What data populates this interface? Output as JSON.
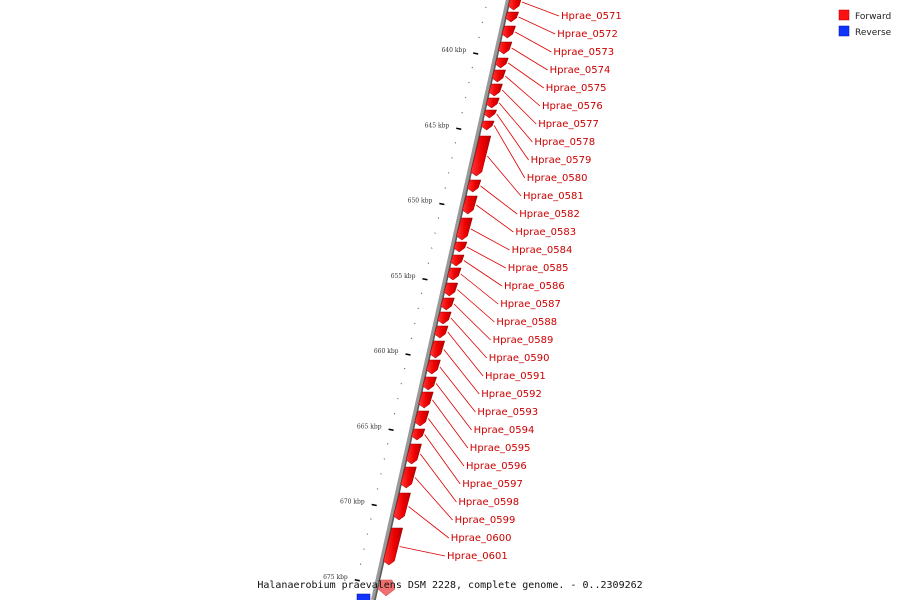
{
  "legend": {
    "items": [
      {
        "label": "Forward",
        "color": "#ff1111"
      },
      {
        "label": "Reverse",
        "color": "#1133ff"
      }
    ]
  },
  "caption": "Halanaerobium praevalens DSM 2228, complete genome. - 0..2309262",
  "axis": {
    "unit": "kbp",
    "ticks": [
      {
        "kbp": 640,
        "label": "640 kbp"
      },
      {
        "kbp": 645,
        "label": "645 kbp"
      },
      {
        "kbp": 650,
        "label": "650 kbp"
      },
      {
        "kbp": 655,
        "label": "655 kbp"
      },
      {
        "kbp": 660,
        "label": "660 kbp"
      },
      {
        "kbp": 665,
        "label": "665 kbp"
      },
      {
        "kbp": 670,
        "label": "670 kbp"
      },
      {
        "kbp": 675,
        "label": "675 kbp"
      }
    ]
  },
  "genes": [
    {
      "label": "Hprae_0571",
      "strand": "forward"
    },
    {
      "label": "Hprae_0572",
      "strand": "forward"
    },
    {
      "label": "Hprae_0573",
      "strand": "forward"
    },
    {
      "label": "Hprae_0574",
      "strand": "forward"
    },
    {
      "label": "Hprae_0575",
      "strand": "forward"
    },
    {
      "label": "Hprae_0576",
      "strand": "forward"
    },
    {
      "label": "Hprae_0577",
      "strand": "forward"
    },
    {
      "label": "Hprae_0578",
      "strand": "forward"
    },
    {
      "label": "Hprae_0579",
      "strand": "forward"
    },
    {
      "label": "Hprae_0580",
      "strand": "forward"
    },
    {
      "label": "Hprae_0581",
      "strand": "forward"
    },
    {
      "label": "Hprae_0582",
      "strand": "forward"
    },
    {
      "label": "Hprae_0583",
      "strand": "forward"
    },
    {
      "label": "Hprae_0584",
      "strand": "forward"
    },
    {
      "label": "Hprae_0585",
      "strand": "forward"
    },
    {
      "label": "Hprae_0586",
      "strand": "forward"
    },
    {
      "label": "Hprae_0587",
      "strand": "forward"
    },
    {
      "label": "Hprae_0588",
      "strand": "forward"
    },
    {
      "label": "Hprae_0589",
      "strand": "forward"
    },
    {
      "label": "Hprae_0590",
      "strand": "forward"
    },
    {
      "label": "Hprae_0591",
      "strand": "forward"
    },
    {
      "label": "Hprae_0592",
      "strand": "forward"
    },
    {
      "label": "Hprae_0593",
      "strand": "forward"
    },
    {
      "label": "Hprae_0594",
      "strand": "forward"
    },
    {
      "label": "Hprae_0595",
      "strand": "forward"
    },
    {
      "label": "Hprae_0596",
      "strand": "forward"
    },
    {
      "label": "Hprae_0597",
      "strand": "forward"
    },
    {
      "label": "Hprae_0598",
      "strand": "forward"
    },
    {
      "label": "Hprae_0599",
      "strand": "forward"
    },
    {
      "label": "Hprae_0600",
      "strand": "forward"
    },
    {
      "label": "Hprae_0601",
      "strand": "forward"
    }
  ]
}
